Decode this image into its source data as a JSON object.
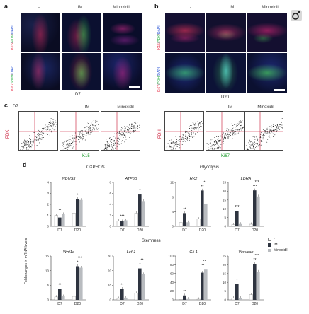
{
  "panel_a": {
    "letter": "a",
    "columns": [
      "-",
      "IM",
      "Minoxidil"
    ],
    "row_labels": [
      {
        "parts": [
          {
            "t": "K15",
            "c": "#e8384f"
          },
          {
            "t": "/",
            "c": "#222"
          },
          {
            "t": "PDK",
            "c": "#2fb34a"
          },
          {
            "t": "/",
            "c": "#222"
          },
          {
            "t": "DAPI",
            "c": "#2b56d6"
          }
        ]
      },
      {
        "parts": [
          {
            "t": "Ki67",
            "c": "#e8384f"
          },
          {
            "t": "/",
            "c": "#222"
          },
          {
            "t": "PDH",
            "c": "#2fb34a"
          },
          {
            "t": "/",
            "c": "#222"
          },
          {
            "t": "DAPI",
            "c": "#2b56d6"
          }
        ]
      }
    ],
    "timepoint": "D7"
  },
  "panel_b": {
    "letter": "b",
    "columns": [
      "-",
      "IM",
      "Minoxidil"
    ],
    "row_labels": [
      {
        "parts": [
          {
            "t": "K15",
            "c": "#e8384f"
          },
          {
            "t": "/",
            "c": "#222"
          },
          {
            "t": "PDK",
            "c": "#2fb34a"
          },
          {
            "t": "/",
            "c": "#222"
          },
          {
            "t": "DAPI",
            "c": "#2b56d6"
          }
        ]
      },
      {
        "parts": [
          {
            "t": "Ki67",
            "c": "#e8384f"
          },
          {
            "t": "/",
            "c": "#222"
          },
          {
            "t": "PDH",
            "c": "#2fb34a"
          },
          {
            "t": "/",
            "c": "#222"
          },
          {
            "t": "DAPI",
            "c": "#2b56d6"
          }
        ]
      }
    ],
    "timepoint": "D20"
  },
  "panel_c": {
    "letter": "c",
    "left_timepoint": "D7",
    "left_columns": [
      "-",
      "IM",
      "Minoxidil"
    ],
    "right_columns": [
      "-",
      "IM",
      "Minoxidil"
    ],
    "left_y_label": "PDK",
    "left_x_label": "K15",
    "right_y_label": "PDH",
    "right_x_label": "Ki67"
  },
  "panel_d": {
    "letter": "d",
    "group_headings": [
      "OXPHOS",
      "Glycolysis",
      "Stemness"
    ],
    "y_axis_label": "Fold changes in mRNA levels",
    "legend": [
      {
        "label": "-",
        "color": "#ffffff"
      },
      {
        "label": "IM",
        "color": "#2e3440"
      },
      {
        "label": "Minoxidil",
        "color": "#b9bcc0"
      }
    ]
  },
  "colors": {
    "ctrl": "#ffffff",
    "im": "#2e3440",
    "minoxidil": "#b9bcc0",
    "red_channel": "#e8384f",
    "green_channel": "#2fb34a",
    "blue_channel": "#2b56d6"
  },
  "chart_data": [
    {
      "type": "bar",
      "title": "NDUS3",
      "categories": [
        "D7",
        "D20"
      ],
      "ylim": [
        0,
        4
      ],
      "yticks": [
        "0",
        "1",
        "2",
        "3",
        "4"
      ],
      "series": [
        {
          "name": "-",
          "values": [
            1.0,
            1.2
          ]
        },
        {
          "name": "IM",
          "values": [
            0.8,
            2.5
          ]
        },
        {
          "name": "Minoxidil",
          "values": [
            1.1,
            2.4
          ]
        }
      ],
      "annotations": [
        "**",
        "*"
      ]
    },
    {
      "type": "bar",
      "title": "ATP5B",
      "categories": [
        "D7",
        "D20"
      ],
      "ylim": [
        0,
        8
      ],
      "yticks": [
        "0",
        "2",
        "4",
        "6",
        "8"
      ],
      "series": [
        {
          "name": "-",
          "values": [
            1.0,
            2.4
          ]
        },
        {
          "name": "IM",
          "values": [
            0.9,
            5.8
          ]
        },
        {
          "name": "Minoxidil",
          "values": [
            1.1,
            4.6
          ]
        }
      ],
      "annotations": [
        "***",
        "*"
      ]
    },
    {
      "type": "bar",
      "title": "HK2",
      "categories": [
        "D7",
        "D20"
      ],
      "ylim": [
        0,
        12
      ],
      "yticks": [
        "0",
        "4",
        "8",
        "12"
      ],
      "series": [
        {
          "name": "-",
          "values": [
            1.0,
            2.0
          ]
        },
        {
          "name": "IM",
          "values": [
            3.6,
            9.8
          ]
        },
        {
          "name": "Minoxidil",
          "values": [
            1.1,
            6.2
          ]
        }
      ],
      "annotations": [
        "**",
        "**",
        "*"
      ]
    },
    {
      "type": "bar",
      "title": "LDHA",
      "categories": [
        "D7",
        "D20"
      ],
      "ylim": [
        0,
        25
      ],
      "yticks": [
        "0",
        "5",
        "10",
        "15",
        "20",
        "25"
      ],
      "series": [
        {
          "name": "-",
          "values": [
            1.0,
            1.2
          ]
        },
        {
          "name": "IM",
          "values": [
            8.8,
            20.5
          ]
        },
        {
          "name": "Minoxidil",
          "values": [
            1.3,
            17.0
          ]
        }
      ],
      "annotations": [
        "***",
        "***",
        "***"
      ]
    },
    {
      "type": "bar",
      "title": "Wnt1a",
      "categories": [
        "D7",
        "D20"
      ],
      "ylim": [
        0,
        15
      ],
      "yticks": [
        "0",
        "5",
        "10",
        "15"
      ],
      "series": [
        {
          "name": "-",
          "values": [
            1.0,
            1.2
          ]
        },
        {
          "name": "IM",
          "values": [
            3.8,
            11.5
          ]
        },
        {
          "name": "Minoxidil",
          "values": [
            1.2,
            11.0
          ]
        }
      ],
      "annotations": [
        "**",
        "*",
        "***"
      ]
    },
    {
      "type": "bar",
      "title": "Lef-1",
      "categories": [
        "D7",
        "D20"
      ],
      "ylim": [
        0,
        30
      ],
      "yticks": [
        "0",
        "10",
        "20",
        "30"
      ],
      "series": [
        {
          "name": "-",
          "values": [
            1.0,
            4.5
          ]
        },
        {
          "name": "IM",
          "values": [
            7.5,
            21.5
          ]
        },
        {
          "name": "Minoxidil",
          "values": [
            1.5,
            17.5
          ]
        }
      ],
      "annotations": [
        "**",
        "*",
        "**"
      ]
    },
    {
      "type": "bar",
      "title": "Gli-1",
      "categories": [
        "D7",
        "D20"
      ],
      "ylim": [
        0,
        100
      ],
      "yticks": [
        "0",
        "20",
        "40",
        "60",
        "80",
        "100"
      ],
      "series": [
        {
          "name": "-",
          "values": [
            1.0,
            1.5
          ]
        },
        {
          "name": "IM",
          "values": [
            10.0,
            62.0
          ]
        },
        {
          "name": "Minoxidil",
          "values": [
            2.0,
            69.0
          ]
        }
      ],
      "annotations": [
        "**",
        "***",
        "**"
      ]
    },
    {
      "type": "bar",
      "title": "Versican",
      "categories": [
        "D7",
        "D20"
      ],
      "ylim": [
        0,
        25
      ],
      "yticks": [
        "0",
        "5",
        "10",
        "15",
        "20",
        "25"
      ],
      "series": [
        {
          "name": "-",
          "values": [
            1.0,
            3.0
          ]
        },
        {
          "name": "IM",
          "values": [
            9.0,
            20.5
          ]
        },
        {
          "name": "Minoxidil",
          "values": [
            1.2,
            16.0
          ]
        }
      ],
      "annotations": [
        "*",
        "**",
        "***"
      ]
    }
  ]
}
